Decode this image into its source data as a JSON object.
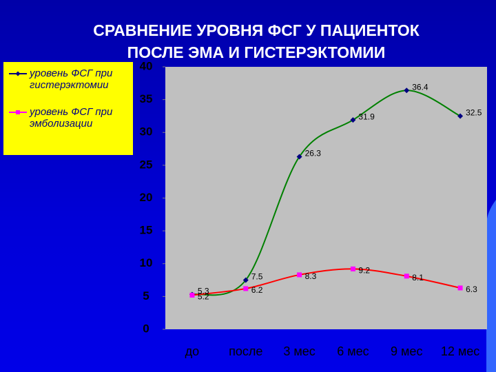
{
  "chart_data": {
    "type": "line",
    "title": [
      "СРАВНЕНИЕ УРОВНЯ ФСГ У ПАЦИЕНТОК",
      "ПОСЛЕ ЭМА И ГИСТЕРЭКТОМИИ"
    ],
    "categories": [
      "до",
      "после",
      "3 мес",
      "6 мес",
      "9 мес",
      "12 мес"
    ],
    "series": [
      {
        "name": "уровень ФСГ при гистерэктомии",
        "color": "#008000",
        "marker_color": "#000080",
        "marker": "diamond",
        "values": [
          5.3,
          7.5,
          26.3,
          31.9,
          36.4,
          32.5
        ]
      },
      {
        "name": "уровень ФСГ при эмболизации",
        "color": "#ff0000",
        "marker_color": "#ff00ff",
        "marker": "square",
        "values": [
          5.2,
          6.2,
          8.3,
          9.2,
          8.1,
          6.3
        ]
      }
    ],
    "ylim": [
      0,
      40
    ],
    "yticks": [
      0,
      5,
      10,
      15,
      20,
      25,
      30,
      35,
      40
    ],
    "smooth": true,
    "legend": "top-left"
  }
}
